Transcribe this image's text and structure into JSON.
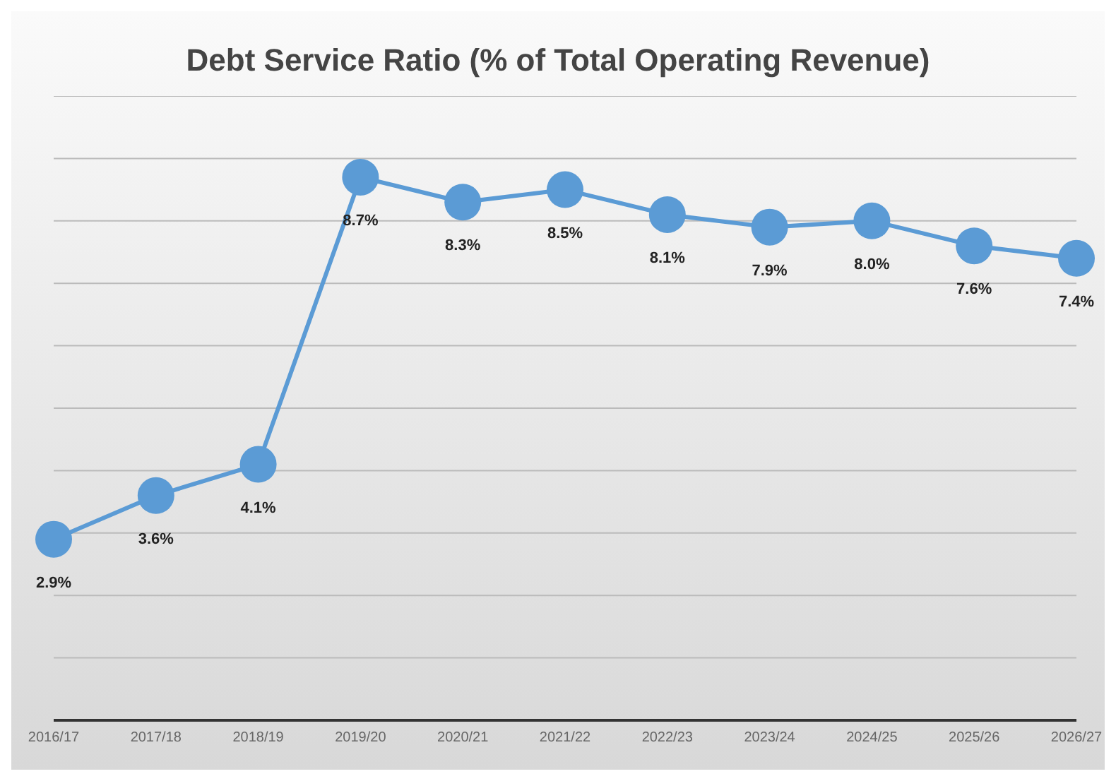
{
  "chart_data": {
    "type": "line",
    "title": "Debt Service Ratio  (% of Total Operating Revenue)",
    "categories": [
      "2016/17",
      "2017/18",
      "2018/19",
      "2019/20",
      "2020/21",
      "2021/22",
      "2022/23",
      "2023/24",
      "2024/25",
      "2025/26",
      "2026/27"
    ],
    "values": [
      2.9,
      3.6,
      4.1,
      8.7,
      8.3,
      8.5,
      8.1,
      7.9,
      8.0,
      7.6,
      7.4
    ],
    "value_labels": [
      "2.9%",
      "3.6%",
      "4.1%",
      "8.7%",
      "8.3%",
      "8.5%",
      "8.1%",
      "7.9%",
      "8.0%",
      "7.6%",
      "7.4%"
    ],
    "color": "#5b9bd5",
    "marker": "circle",
    "ylim": [
      0,
      10
    ],
    "yticks": [
      {
        "value": 0,
        "label": null
      },
      {
        "value": 1,
        "label": null
      },
      {
        "value": 2,
        "label": null
      },
      {
        "value": 3,
        "label": null
      },
      {
        "value": 4,
        "label": null
      },
      {
        "value": 5,
        "label": null
      },
      {
        "value": 6,
        "label": null
      },
      {
        "value": 7,
        "label": null
      },
      {
        "value": 8,
        "label": null
      },
      {
        "value": 9,
        "label": null
      },
      {
        "value": 10,
        "label": null
      }
    ],
    "grid": "y",
    "tick_labels": "x"
  }
}
